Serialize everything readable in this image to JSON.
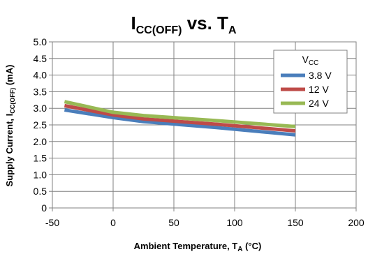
{
  "chart_data": {
    "type": "line",
    "title": {
      "main": "I",
      "sub": "CC(OFF)",
      "mid": " vs. T",
      "sub2": "A"
    },
    "xlabel": {
      "main": "Ambient Temperature, T",
      "sub": "A",
      "tail": " (°C)"
    },
    "ylabel": {
      "main": "Supply Current, I",
      "sub": "CC(OFF)",
      "tail": " (mA)"
    },
    "xlim": [
      -50,
      200
    ],
    "ylim": [
      0,
      5.0
    ],
    "x_ticks": [
      "-50",
      "0",
      "50",
      "100",
      "150",
      "200"
    ],
    "x_tick_values": [
      -50,
      0,
      50,
      100,
      150,
      200
    ],
    "y_ticks": [
      "0",
      "0.5",
      "1.0",
      "1.5",
      "2.0",
      "2.5",
      "3.0",
      "3.5",
      "4.0",
      "4.5",
      "5.0"
    ],
    "y_tick_values": [
      0,
      0.5,
      1.0,
      1.5,
      2.0,
      2.5,
      3.0,
      3.5,
      4.0,
      4.5,
      5.0
    ],
    "grid": true,
    "legend_position": "top-right",
    "legend_title": {
      "main": "V",
      "sub": "CC"
    },
    "series": [
      {
        "name": "3.8 V",
        "color": "#4a7ebb",
        "x": [
          -40,
          0,
          25,
          85,
          150
        ],
        "y": [
          2.95,
          2.72,
          2.6,
          2.42,
          2.2
        ]
      },
      {
        "name": "12 V",
        "color": "#be4b48",
        "x": [
          -40,
          0,
          25,
          85,
          150
        ],
        "y": [
          3.08,
          2.8,
          2.68,
          2.52,
          2.32
        ]
      },
      {
        "name": "24 V",
        "color": "#98b954",
        "x": [
          -40,
          0,
          25,
          85,
          150
        ],
        "y": [
          3.2,
          2.88,
          2.78,
          2.63,
          2.45
        ]
      }
    ]
  }
}
